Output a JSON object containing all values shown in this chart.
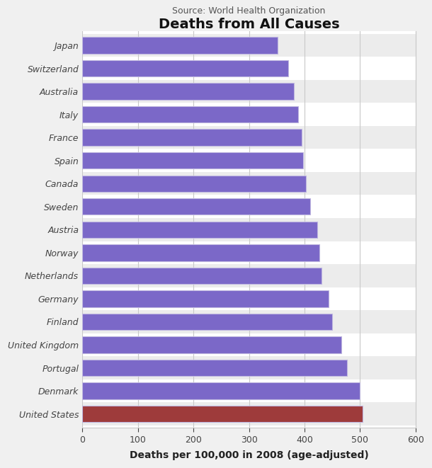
{
  "title": "Deaths from All Causes",
  "subtitle": "Source: World Health Organization",
  "xlabel": "Deaths per 100,000 in 2008 (age-adjusted)",
  "categories": [
    "United States",
    "Denmark",
    "Portugal",
    "United Kingdom",
    "Finland",
    "Germany",
    "Netherlands",
    "Norway",
    "Austria",
    "Sweden",
    "Canada",
    "Spain",
    "France",
    "Italy",
    "Australia",
    "Switzerland",
    "Japan"
  ],
  "values": [
    504,
    500,
    476,
    466,
    450,
    443,
    430,
    427,
    423,
    410,
    402,
    398,
    395,
    388,
    381,
    371,
    352
  ],
  "bar_colors": [
    "#9e3b3b",
    "#7b68c8",
    "#7b68c8",
    "#7b68c8",
    "#7b68c8",
    "#7b68c8",
    "#7b68c8",
    "#7b68c8",
    "#7b68c8",
    "#7b68c8",
    "#7b68c8",
    "#7b68c8",
    "#7b68c8",
    "#7b68c8",
    "#7b68c8",
    "#7b68c8",
    "#7b68c8"
  ],
  "bar_edge_color": "#c0b8e0",
  "xlim": [
    0,
    600
  ],
  "xticks": [
    0,
    100,
    200,
    300,
    400,
    500,
    600
  ],
  "background_color": "#f0f0f0",
  "plot_background_color": "#ffffff",
  "row_alt_color": "#ececec",
  "grid_color": "#c8c8c8",
  "title_fontsize": 14,
  "subtitle_fontsize": 9,
  "xlabel_fontsize": 10,
  "tick_fontsize": 9,
  "bar_height": 0.72
}
